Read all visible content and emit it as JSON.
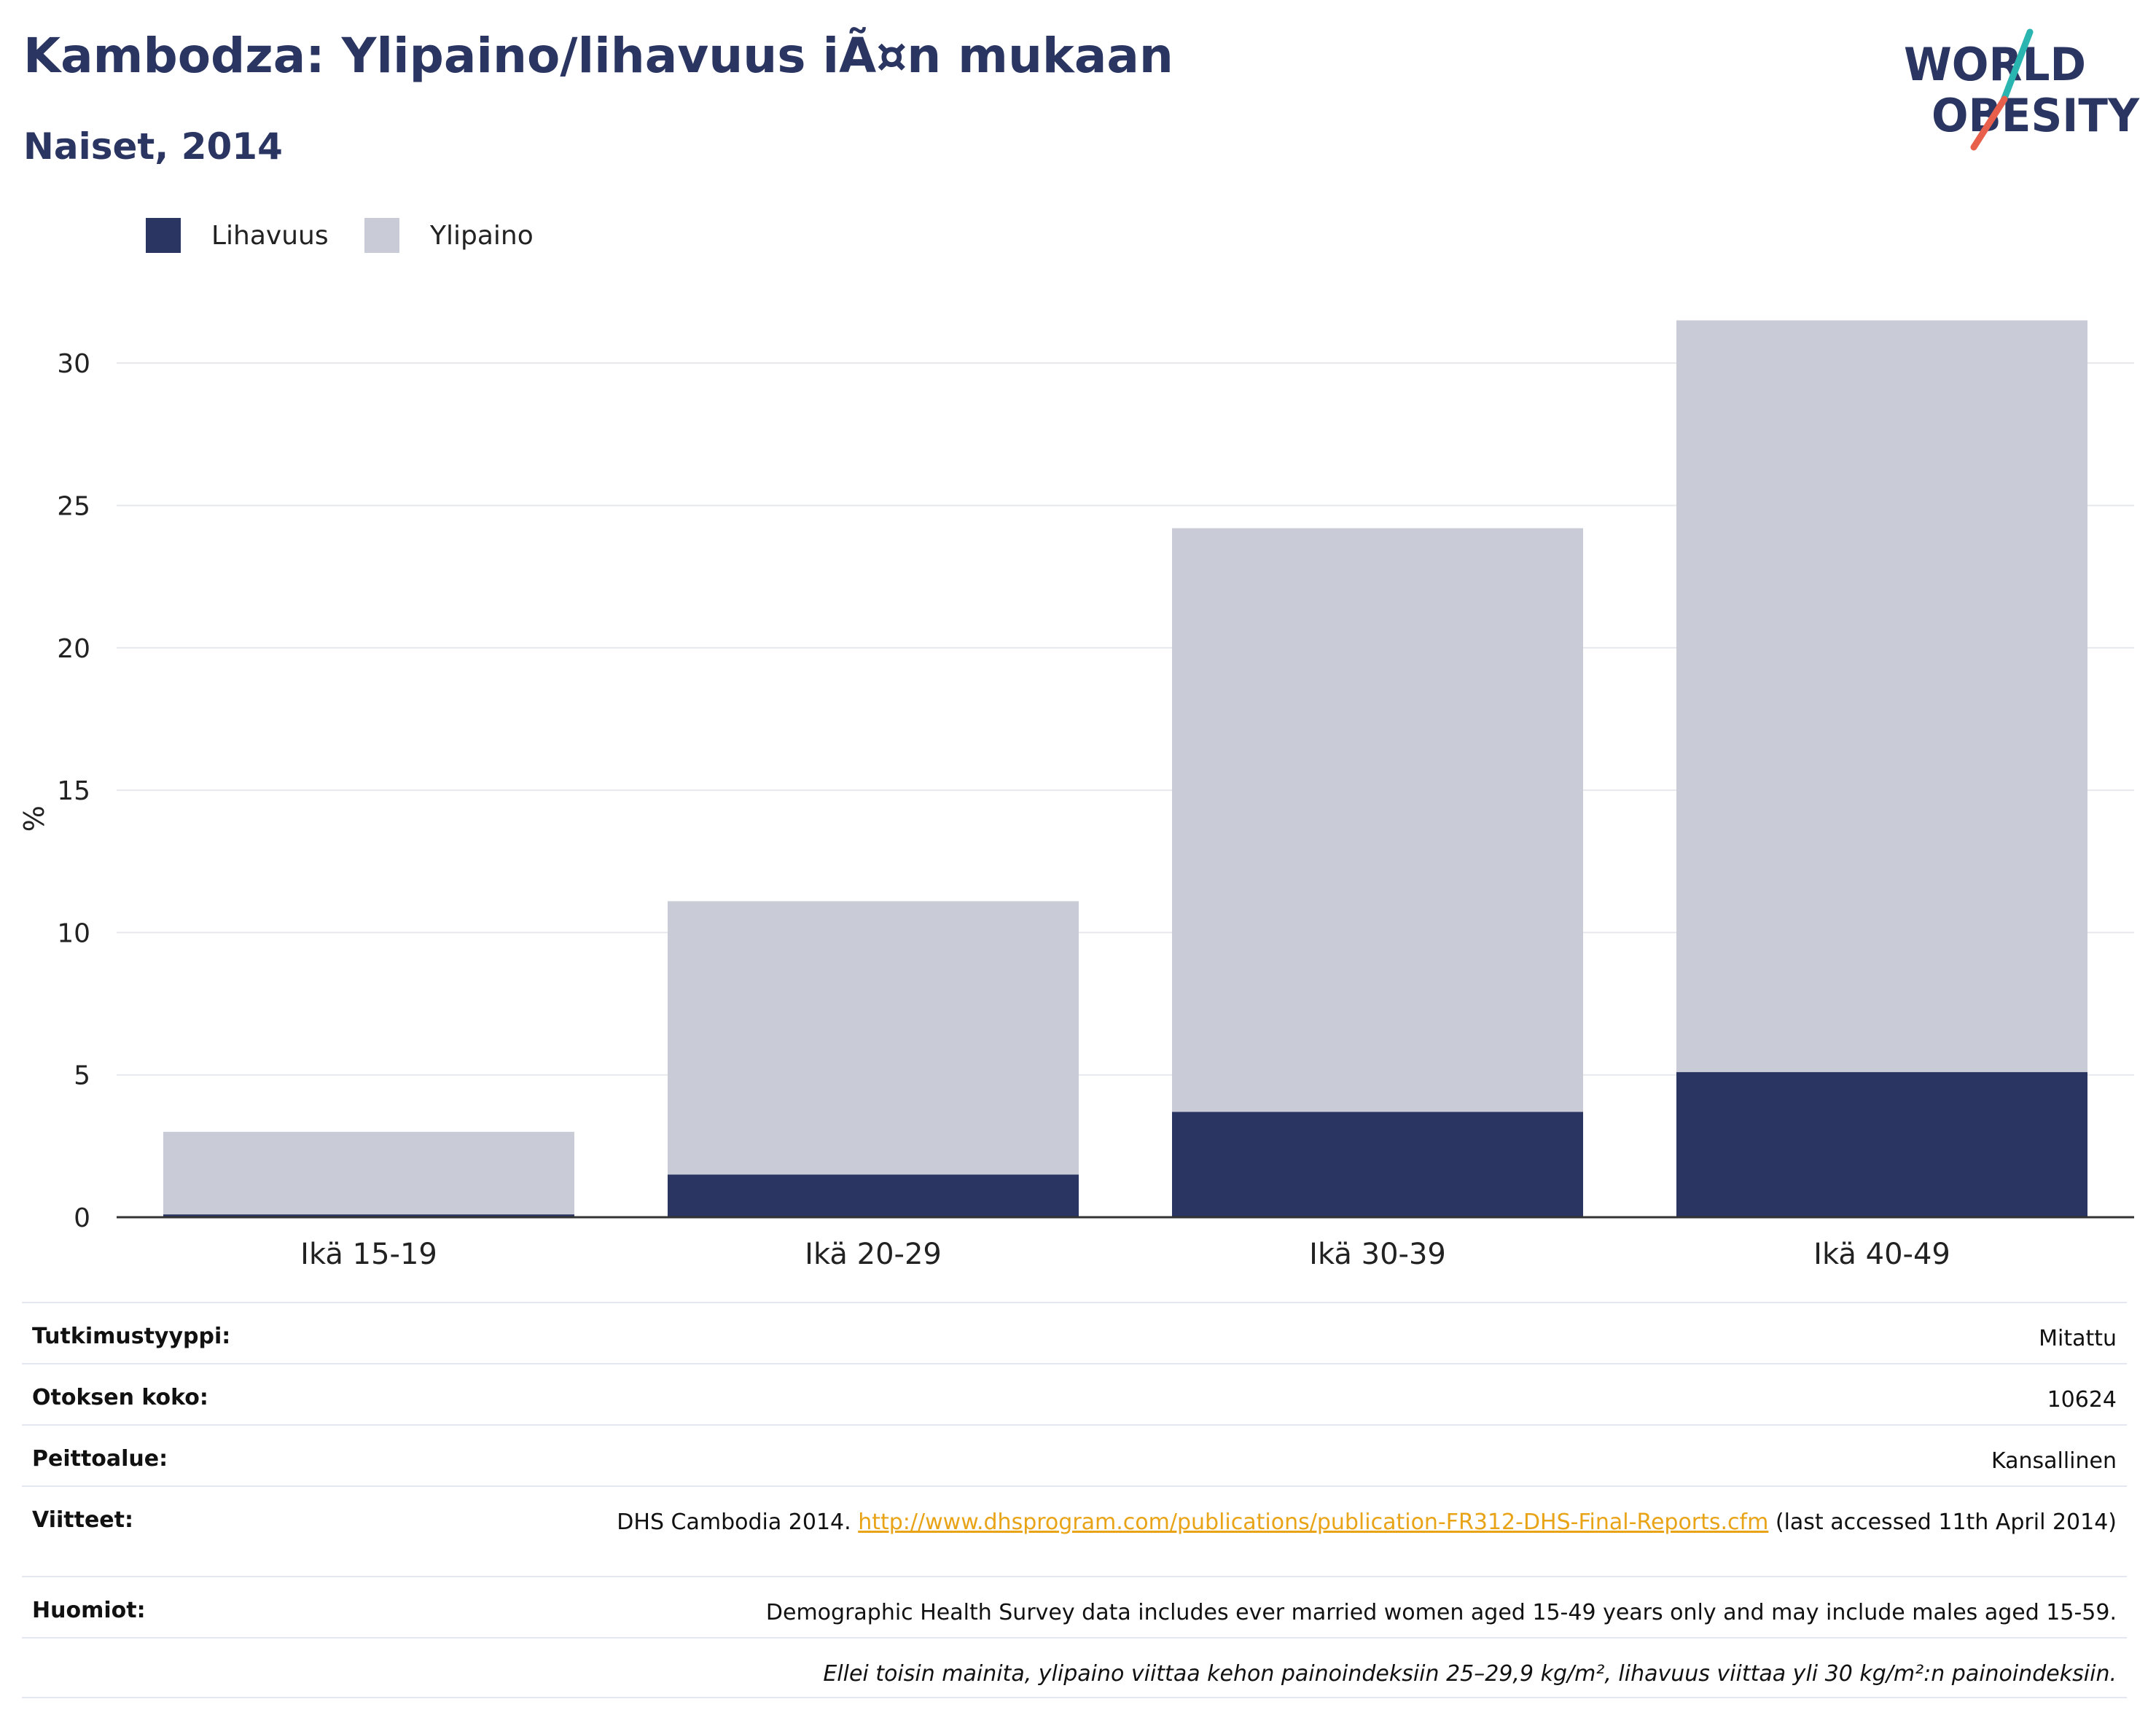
{
  "header": {
    "title": "Kambodza: Ylipaino/lihavuus iÃ¤n mukaan",
    "subtitle": "Naiset, 2014"
  },
  "logo": {
    "line1": "WORLD",
    "line2": "OBESITY",
    "slash_colors": [
      "#2bb5b0",
      "#e8604c"
    ]
  },
  "legend": [
    {
      "label": "Lihavuus",
      "color": "#2a3561"
    },
    {
      "label": "Ylipaino",
      "color": "#c9ccd7"
    }
  ],
  "chart_data": {
    "type": "bar",
    "stacked": true,
    "categories": [
      "Ikä 15-19",
      "Ikä 20-29",
      "Ikä 30-39",
      "Ikä 40-49"
    ],
    "series": [
      {
        "name": "Lihavuus",
        "color": "#2a3561",
        "values": [
          0.1,
          1.5,
          3.7,
          5.1
        ]
      },
      {
        "name": "Ylipaino",
        "color": "#c9ccd7",
        "values": [
          2.9,
          9.6,
          20.5,
          26.4
        ]
      }
    ],
    "ylabel": "%",
    "yticks": [
      0,
      5,
      10,
      15,
      20,
      25,
      30
    ],
    "ylim": [
      0,
      32
    ],
    "grid": true,
    "legend_position": "top-left"
  },
  "meta": [
    {
      "key": "Tutkimustyyppi:",
      "value": "Mitattu"
    },
    {
      "key": "Otoksen koko:",
      "value": "10624"
    },
    {
      "key": "Peittoalue:",
      "value": "Kansallinen"
    },
    {
      "key": "Viitteet:",
      "value_prefix": "DHS Cambodia 2014. ",
      "link": "http://www.dhsprogram.com/publications/publication-FR312-DHS-Final-Reports.cfm",
      "value_suffix": " (last accessed 11th April 2014)"
    },
    {
      "key": "Huomiot:",
      "value": "Demographic Health Survey data includes ever married women aged 15-49 years only and may include males aged 15-59."
    },
    {
      "key": "",
      "value": "Ellei toisin mainita, ylipaino viittaa kehon painoindeksiin 25–29,9 kg/m², lihavuus viittaa yli 30 kg/m²:n painoindeksiin."
    }
  ]
}
